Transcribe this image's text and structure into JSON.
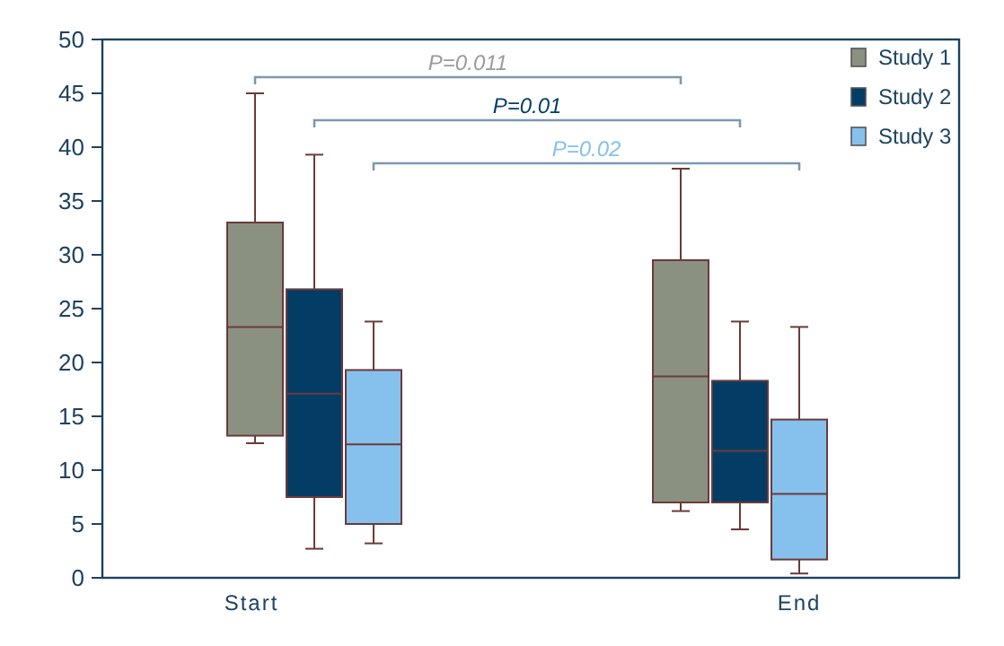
{
  "chart_data": {
    "type": "box",
    "categories": [
      "Start",
      "End"
    ],
    "ylim": [
      0,
      50
    ],
    "yticks": [
      0,
      5,
      10,
      15,
      20,
      25,
      30,
      35,
      40,
      45,
      50
    ],
    "legend": "top right",
    "grid": false,
    "series": [
      {
        "name": "Study 1",
        "color": "#8a9180",
        "boxes": [
          {
            "low": 12.5,
            "q1": 13.2,
            "median": 23.3,
            "q3": 33,
            "high": 45
          },
          {
            "low": 6.2,
            "q1": 7,
            "median": 18.7,
            "q3": 29.5,
            "high": 38
          }
        ]
      },
      {
        "name": "Study 2",
        "color": "#033d66",
        "boxes": [
          {
            "low": 2.7,
            "q1": 7.5,
            "median": 17.1,
            "q3": 26.8,
            "high": 39.3
          },
          {
            "low": 4.5,
            "q1": 7,
            "median": 11.8,
            "q3": 18.3,
            "high": 23.8
          }
        ]
      },
      {
        "name": "Study 3",
        "color": "#85c1ec",
        "boxes": [
          {
            "low": 3.2,
            "q1": 5,
            "median": 12.4,
            "q3": 19.3,
            "high": 23.8
          },
          {
            "low": 0.4,
            "q1": 1.7,
            "median": 7.8,
            "q3": 14.7,
            "high": 23.3
          }
        ]
      }
    ],
    "annotations": [
      "P=0.011",
      "P=0.01",
      "P=0.02"
    ]
  }
}
